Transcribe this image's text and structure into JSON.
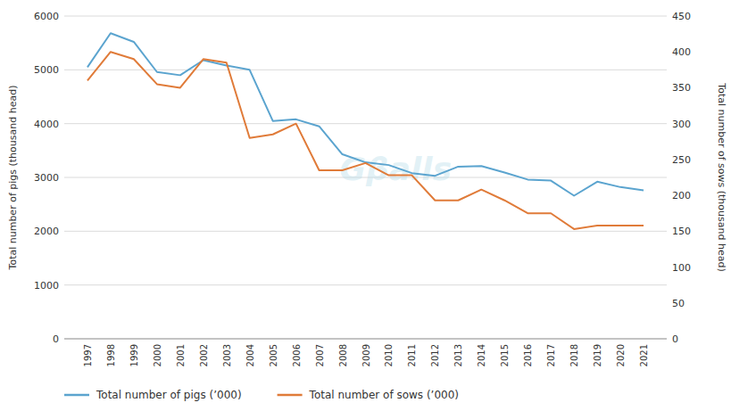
{
  "chart_data": {
    "type": "line",
    "x": [
      1997,
      1998,
      1999,
      2000,
      2001,
      2002,
      2003,
      2004,
      2005,
      2006,
      2007,
      2008,
      2009,
      2010,
      2011,
      2012,
      2013,
      2014,
      2015,
      2016,
      2017,
      2018,
      2019,
      2020,
      2021
    ],
    "xlim": [
      1996,
      2022
    ],
    "xticks": [
      1997,
      1998,
      1999,
      2000,
      2001,
      2002,
      2003,
      2004,
      2005,
      2006,
      2007,
      2008,
      2009,
      2010,
      2011,
      2012,
      2013,
      2014,
      2015,
      2016,
      2017,
      2018,
      2019,
      2020,
      2021
    ],
    "series": [
      {
        "name": "Total number of pigs (’000)",
        "color": "#5BA4CF",
        "axis": "y",
        "values": [
          5050,
          5680,
          5520,
          4960,
          4900,
          5180,
          5080,
          5000,
          4050,
          4080,
          3950,
          3430,
          3280,
          3230,
          3080,
          3030,
          3200,
          3210,
          3090,
          2960,
          2940,
          2660,
          2920,
          2820,
          2760
        ]
      },
      {
        "name": "Total number of sows (’000)",
        "color": "#E07B39",
        "axis": "y2",
        "values": [
          360,
          400,
          390,
          355,
          350,
          390,
          385,
          280,
          285,
          300,
          235,
          235,
          245,
          228,
          228,
          193,
          193,
          208,
          193,
          175,
          175,
          153,
          158,
          158,
          158
        ]
      }
    ],
    "ylabel": "Total number of pigs (thousand head)",
    "y2label": "Total number of sows (thousand head)",
    "ylim": [
      0,
      6000
    ],
    "yticks": [
      0,
      1000,
      2000,
      3000,
      4000,
      5000,
      6000
    ],
    "y2lim": [
      0,
      450
    ],
    "y2ticks": [
      0,
      50,
      100,
      150,
      200,
      250,
      300,
      350,
      400,
      450
    ],
    "grid": true,
    "legend": "lower left",
    "annotations": [
      "Gβalls"
    ]
  }
}
